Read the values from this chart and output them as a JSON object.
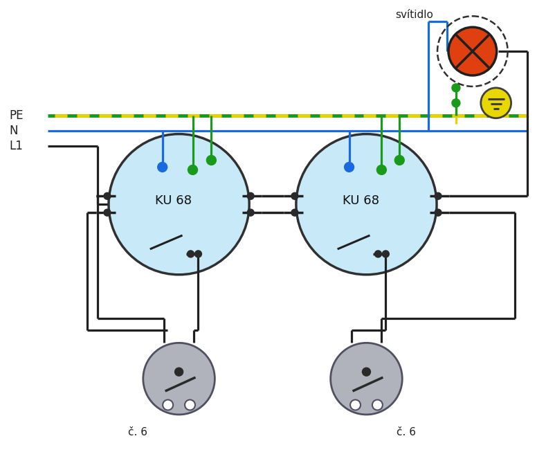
{
  "bg_color": "#ffffff",
  "ku68_color": "#c8eaf8",
  "ku68_border": "#303030",
  "switch_color": "#b0b2bc",
  "switch_border": "#505060",
  "dot_color": "#2a2a2a",
  "lamp_color": "#e04010",
  "lamp_border": "#202020",
  "ground_color": "#e8d800",
  "green_wire": "#1a9a1a",
  "blue_wire": "#1a6adf",
  "yellow_wire": "#e8d200",
  "black_wire": "#202020",
  "labels": {
    "PE": "PE",
    "N": "N",
    "L1": "L1",
    "KU68": "KU 68",
    "c6": "č. 6",
    "svitidlo": "svítidlo"
  }
}
